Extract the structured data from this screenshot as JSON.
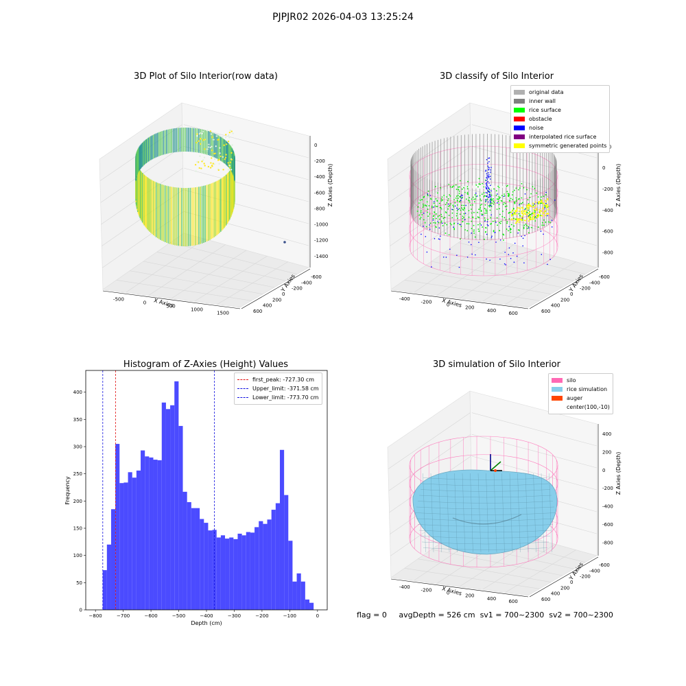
{
  "suptitle": "PJPJR02 2026-04-03 13:25:24",
  "status": {
    "flag": "flag = 0",
    "avg": "avgDepth = 526 cm",
    "sv1": "sv1 = 700~2300",
    "sv2": "sv2 = 700~2300"
  },
  "colors": {
    "hist_bar": "#4b4bff",
    "first_peak": "#e01010",
    "limits": "#1010e0",
    "silo": "#ff69b4",
    "rice_sim": "#87ceeb",
    "auger": "#ff4500"
  },
  "chart_data": [
    {
      "type": "scatter",
      "title": "3D Plot of Silo Interior(row data)",
      "xlabel": "X Axies",
      "ylabel": "Y Axies",
      "zlabel": "Z Axies (Depth)",
      "x_ticks": [
        "-500",
        "0",
        "500",
        "1000",
        "1500"
      ],
      "y_ticks": [
        "-600",
        "-400",
        "-200",
        "0",
        "200",
        "400",
        "600"
      ],
      "z_ticks": [
        "0",
        "-200",
        "-400",
        "-600",
        "-800",
        "-1000",
        "-1200",
        "-1400"
      ],
      "colormap": "viridis"
    },
    {
      "type": "scatter",
      "title": "3D classify of Silo Interior",
      "xlabel": "X Axies",
      "ylabel": "Y Axies",
      "zlabel": "Z Axies (Depth)",
      "x_ticks": [
        "-400",
        "-200",
        "0",
        "200",
        "400",
        "600"
      ],
      "y_ticks": [
        "-600",
        "-400",
        "-200",
        "0",
        "200",
        "400",
        "600"
      ],
      "z_ticks": [
        "200",
        "0",
        "-200",
        "-400",
        "-600",
        "-800"
      ],
      "legend_position": "top-right",
      "legend": [
        {
          "label": "original data",
          "color": "#b0b0b0"
        },
        {
          "label": "inner wall",
          "color": "#808080"
        },
        {
          "label": "rice surface",
          "color": "#00ff00"
        },
        {
          "label": "obstacle",
          "color": "#ff0000"
        },
        {
          "label": "noise",
          "color": "#0000ff"
        },
        {
          "label": "interpolated rice surface",
          "color": "#800080"
        },
        {
          "label": "symmetric generated points",
          "color": "#ffff00"
        }
      ]
    },
    {
      "type": "bar",
      "title": "Histogram of Z-Axies (Height) Values",
      "xlabel": "Depth (cm)",
      "ylabel": "Frequency",
      "xlim": [
        -835,
        35
      ],
      "ylim": [
        0,
        440
      ],
      "x_ticks": [
        -800,
        -700,
        -600,
        -500,
        -400,
        -300,
        -200,
        -100,
        0
      ],
      "y_ticks": [
        0,
        50,
        100,
        150,
        200,
        250,
        300,
        350,
        400
      ],
      "bin_start": -774,
      "bin_width": 15.2,
      "values": [
        73,
        120,
        185,
        305,
        233,
        234,
        253,
        243,
        256,
        293,
        282,
        280,
        276,
        275,
        381,
        369,
        376,
        420,
        338,
        217,
        198,
        187,
        187,
        167,
        160,
        146,
        147,
        133,
        137,
        131,
        133,
        130,
        140,
        137,
        143,
        142,
        152,
        163,
        158,
        166,
        184,
        196,
        294,
        211,
        127,
        52,
        67,
        52,
        19,
        13
      ],
      "vlines": [
        {
          "label": "first_peak: -727.30 cm",
          "x": -727.3,
          "color": "#e01010"
        },
        {
          "label": "Upper_limit: -371.58 cm",
          "x": -371.58,
          "color": "#1010e0"
        },
        {
          "label": "Lower_limit: -773.70 cm",
          "x": -773.7,
          "color": "#1010e0"
        }
      ],
      "legend_position": "top-right"
    },
    {
      "type": "scatter",
      "title": "3D simulation of Silo Interior",
      "xlabel": "X Axies",
      "ylabel": "Y Axies",
      "zlabel": "Z Axies (Depth)",
      "x_ticks": [
        "-400",
        "-200",
        "0",
        "200",
        "400",
        "600"
      ],
      "y_ticks": [
        "-600",
        "-400",
        "-200",
        "0",
        "200",
        "400",
        "600"
      ],
      "z_ticks": [
        "400",
        "200",
        "0",
        "-200",
        "-400",
        "-600",
        "-800"
      ],
      "legend_position": "top-right",
      "legend": [
        {
          "label": "silo",
          "color": "#ff69b4"
        },
        {
          "label": "rice simulation",
          "color": "#87ceeb"
        },
        {
          "label": "auger",
          "color": "#ff4500"
        },
        {
          "label": "center(100,-10)",
          "color": ""
        }
      ]
    }
  ]
}
